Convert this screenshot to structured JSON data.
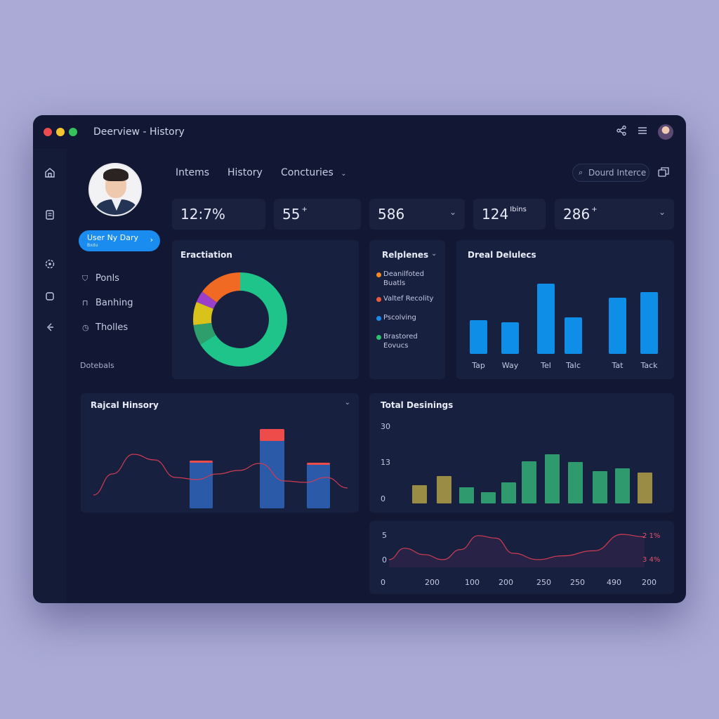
{
  "window": {
    "title": "Deerview - History"
  },
  "sidebar": {
    "user_button": {
      "label": "User Ny Dary",
      "sublabel": "Bxdu"
    },
    "items": [
      {
        "label": "Ponls",
        "icon": "shield-icon"
      },
      {
        "label": "Banhing",
        "icon": "lock-icon"
      },
      {
        "label": "Tholles",
        "icon": "clock-icon"
      }
    ],
    "caption": "Dotebals"
  },
  "rail": {
    "icons": [
      "home-icon",
      "document-icon",
      "settings-icon",
      "folder-icon",
      "back-icon"
    ]
  },
  "tabs": [
    "Intems",
    "History",
    "Concturies"
  ],
  "search": {
    "placeholder": "Dourd Interce"
  },
  "stats": [
    {
      "value": "12:7%",
      "suffix": "",
      "has_chevron": false
    },
    {
      "value": "55",
      "suffix": "+",
      "has_chevron": false
    },
    {
      "value": "586",
      "suffix": "",
      "has_chevron": true
    },
    {
      "value": "124",
      "suffix": "Ibins",
      "has_chevron": false
    },
    {
      "value": "286",
      "suffix": "+",
      "has_chevron": true
    }
  ],
  "colors": {
    "accent": "#1a8cf0",
    "donut": [
      "#1fc48a",
      "#2e9e6d",
      "#d9c21a",
      "#9c3fc9",
      "#f06a24"
    ],
    "blue_bar": "#0f8ee8",
    "hist_bar": "#2b5aa8",
    "hist_cap": "#ee4b4b",
    "red_line": "#d03c52",
    "olive_bar": "#9a8c45",
    "green_bar": "#2f9a6e"
  },
  "cards": {
    "donut": {
      "title": "Eractiation"
    },
    "legend": {
      "title": "Relplenes",
      "items": [
        {
          "label": "Deanilfoted Buatls",
          "color": "#f28c28"
        },
        {
          "label": "Valtef Recolity",
          "color": "#ec5a3a"
        },
        {
          "label": "Pscolving",
          "color": "#1a8cf0"
        },
        {
          "label": "Brastored Eovucs",
          "color": "#2fbf71"
        }
      ]
    },
    "bars": {
      "title": "Dreal Delulecs"
    },
    "history": {
      "title": "Rajcal Hinsory"
    },
    "totals": {
      "title": "Total Desinings"
    }
  },
  "chart_data": [
    {
      "type": "pie",
      "title": "Eractiation",
      "categories": [
        "Green",
        "Dark green",
        "Yellow",
        "Purple",
        "Orange"
      ],
      "values": [
        66,
        7,
        8,
        4,
        15
      ]
    },
    {
      "type": "bar",
      "title": "Dreal Delulecs",
      "categories": [
        "Tap",
        "Way",
        "Tel",
        "Talc",
        "Tat",
        "Tack"
      ],
      "values": [
        48,
        45,
        100,
        52,
        80,
        88
      ]
    },
    {
      "type": "bar",
      "title": "Rajcal Hinsory",
      "categories": [
        "",
        "",
        ""
      ],
      "series": [
        {
          "values": [
            68,
            113,
            65
          ]
        }
      ],
      "line": [
        10,
        40,
        68,
        60,
        35,
        32,
        40,
        45,
        55,
        30,
        28,
        35,
        20
      ]
    },
    {
      "type": "bar",
      "title": "Total Desinings",
      "yticks": [
        "30",
        "13",
        "0"
      ],
      "values": [
        26,
        39,
        23,
        16,
        30,
        60,
        70,
        59,
        46,
        50,
        44
      ],
      "ylim": [
        0,
        80
      ]
    },
    {
      "type": "area",
      "yticks": [
        "5",
        "0"
      ],
      "xticks": [
        "0",
        "200",
        "100",
        "200",
        "250",
        "250",
        "490",
        "200"
      ],
      "values": [
        0.5,
        1.4,
        0.9,
        0.5,
        1.3,
        2.4,
        2.2,
        1.0,
        0.5,
        0.8,
        1.2,
        2.5,
        2.3
      ],
      "annotations": [
        "2 1%",
        "3 4%"
      ]
    }
  ]
}
